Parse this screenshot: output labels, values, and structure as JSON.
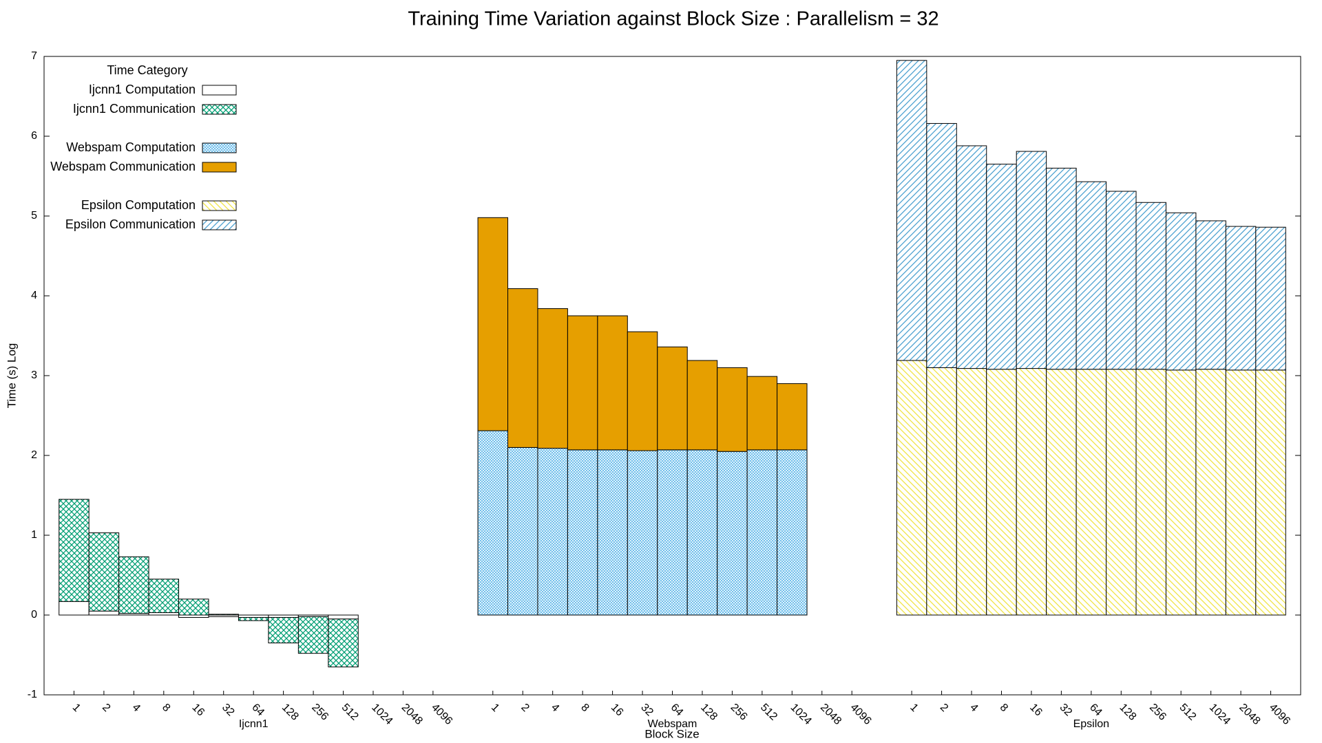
{
  "chart_data": {
    "type": "bar",
    "title": "Training Time Variation against Block Size : Parallelism = 32",
    "x_label": "Block Size",
    "y_label": "Time (s) Log",
    "legend_title": "Time Category",
    "legend": "top-left",
    "stacked": true,
    "ylim": [
      -1,
      7
    ],
    "yticks": [
      -1,
      0,
      1,
      2,
      3,
      4,
      5,
      6,
      7
    ],
    "groups": [
      {
        "name": "Ijcnn1",
        "categories": [
          "1",
          "2",
          "4",
          "8",
          "16",
          "32",
          "64",
          "128",
          "256",
          "512",
          "1024",
          "2048",
          "4096"
        ],
        "series": [
          {
            "name": "Ijcnn1 Computation",
            "color": "#000000",
            "pattern": "empty",
            "values": [
              0.17,
              0.05,
              0.02,
              0.03,
              -0.03,
              -0.02,
              -0.03,
              -0.03,
              -0.02,
              -0.05,
              null,
              null,
              null
            ]
          },
          {
            "name": "Ijcnn1 Communication",
            "color": "#009e73",
            "pattern": "crosshatch",
            "values": [
              1.28,
              0.98,
              0.71,
              0.42,
              0.2,
              0.01,
              -0.04,
              -0.32,
              -0.46,
              -0.6,
              null,
              null,
              null
            ]
          }
        ]
      },
      {
        "name": "Webspam",
        "categories": [
          "1",
          "2",
          "4",
          "8",
          "16",
          "32",
          "64",
          "128",
          "256",
          "512",
          "1024",
          "2048",
          "4096"
        ],
        "series": [
          {
            "name": "Webspam Computation",
            "color": "#56b4e9",
            "pattern": "finehatch",
            "values": [
              2.31,
              2.1,
              2.09,
              2.07,
              2.07,
              2.06,
              2.07,
              2.07,
              2.05,
              2.07,
              2.07,
              null,
              null
            ]
          },
          {
            "name": "Webspam Communication",
            "color": "#e69f00",
            "pattern": "solid",
            "values": [
              2.67,
              1.99,
              1.75,
              1.68,
              1.68,
              1.49,
              1.29,
              1.12,
              1.05,
              0.92,
              0.83,
              null,
              null
            ]
          }
        ]
      },
      {
        "name": "Epsilon",
        "categories": [
          "1",
          "2",
          "4",
          "8",
          "16",
          "32",
          "64",
          "128",
          "256",
          "512",
          "1024",
          "2048",
          "4096"
        ],
        "series": [
          {
            "name": "Epsilon Computation",
            "color": "#f0e442",
            "pattern": "backslash",
            "values": [
              3.19,
              3.1,
              3.09,
              3.08,
              3.09,
              3.08,
              3.08,
              3.08,
              3.08,
              3.07,
              3.08,
              3.07,
              3.07
            ]
          },
          {
            "name": "Epsilon Communication",
            "color": "#4aa0d0",
            "pattern": "slash",
            "values": [
              3.76,
              3.06,
              2.79,
              2.57,
              2.72,
              2.52,
              2.35,
              2.23,
              2.09,
              1.97,
              1.86,
              1.8,
              1.79
            ]
          }
        ]
      }
    ]
  }
}
